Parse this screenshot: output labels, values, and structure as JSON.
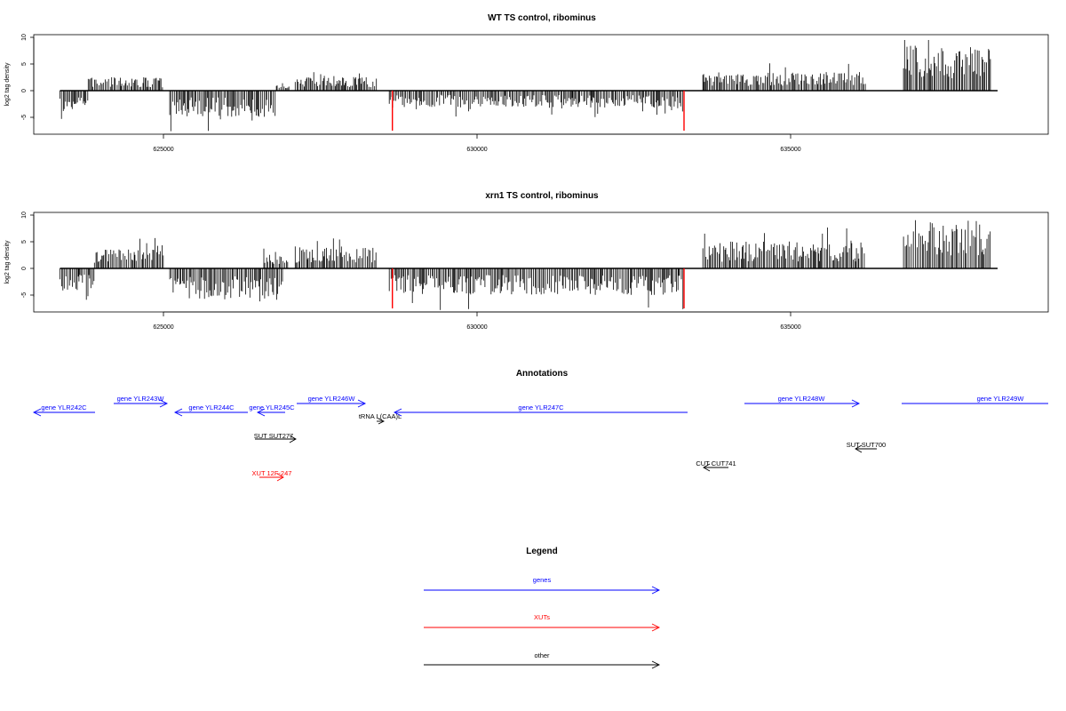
{
  "panels": [
    {
      "title": "WT TS control, ribominus",
      "ylabel": "log2 tag density",
      "yticks": [
        "10",
        "5",
        "0",
        "-5"
      ],
      "xticks": [
        "625000",
        "630000",
        "635000"
      ]
    },
    {
      "title": "xrn1 TS control, ribominus",
      "ylabel": "log2 tag density",
      "yticks": [
        "10",
        "5",
        "0",
        "-5"
      ],
      "xticks": [
        "625000",
        "630000",
        "635000"
      ]
    }
  ],
  "annotations": {
    "title": "Annotations",
    "items": [
      {
        "label": "gene YLR242C",
        "color": "#0000ff"
      },
      {
        "label": "gene YLR243W",
        "color": "#0000ff"
      },
      {
        "label": "gene YLR244C",
        "color": "#0000ff"
      },
      {
        "label": "gene YLR245C",
        "color": "#0000ff"
      },
      {
        "label": "gene YLR246W",
        "color": "#0000ff"
      },
      {
        "label": "tRNA L(CAA)L",
        "color": "#000000"
      },
      {
        "label": "gene YLR247C",
        "color": "#0000ff"
      },
      {
        "label": "gene YLR248W",
        "color": "#0000ff"
      },
      {
        "label": "gene YLR249W",
        "color": "#0000ff"
      },
      {
        "label": "SUT SUT277",
        "color": "#000000"
      },
      {
        "label": "SUT SUT700",
        "color": "#000000"
      },
      {
        "label": "CUT CUT741",
        "color": "#000000"
      },
      {
        "label": "XUT 12F-247",
        "color": "#ff0000"
      }
    ]
  },
  "legend": {
    "title": "Legend",
    "items": [
      {
        "label": "genes",
        "color": "#0000ff"
      },
      {
        "label": "XUTs",
        "color": "#ff0000"
      },
      {
        "label": "other",
        "color": "#000000"
      }
    ]
  },
  "chart_data": [
    {
      "type": "bar",
      "title": "WT TS control, ribominus",
      "ylabel": "log2 tag density",
      "xlim": [
        623000,
        639000
      ],
      "ylim": [
        -8,
        10
      ],
      "segments": [
        {
          "start": 623350,
          "end": 623800,
          "strand": "minus",
          "level": 2.5
        },
        {
          "start": 623800,
          "end": 625000,
          "strand": "plus",
          "level": 1.8
        },
        {
          "start": 625100,
          "end": 626800,
          "strand": "minus",
          "level": 3.5
        },
        {
          "start": 626800,
          "end": 627000,
          "strand": "plus",
          "level": 1.0
        },
        {
          "start": 627100,
          "end": 628400,
          "strand": "plus",
          "level": 1.8
        },
        {
          "start": 628600,
          "end": 633200,
          "strand": "minus",
          "level": 2.3
        },
        {
          "start": 633200,
          "end": 633300,
          "strand": "minus",
          "level": 2.5
        },
        {
          "start": 633600,
          "end": 636200,
          "strand": "plus",
          "level": 2.5
        },
        {
          "start": 636800,
          "end": 638200,
          "strand": "plus",
          "level": 6.0
        }
      ],
      "highlight_lines": [
        {
          "x": 628650,
          "y": -7.5,
          "color": "#ff0000"
        },
        {
          "x": 633300,
          "y": -7.5,
          "color": "#ff0000"
        }
      ]
    },
    {
      "type": "bar",
      "title": "xrn1 TS control, ribominus",
      "ylabel": "log2 tag density",
      "xlim": [
        623000,
        639000
      ],
      "ylim": [
        -8,
        10
      ],
      "segments": [
        {
          "start": 623350,
          "end": 623900,
          "strand": "minus",
          "level": 3.2
        },
        {
          "start": 623900,
          "end": 625000,
          "strand": "plus",
          "level": 2.6
        },
        {
          "start": 625100,
          "end": 626900,
          "strand": "minus",
          "level": 4.2
        },
        {
          "start": 626600,
          "end": 627000,
          "strand": "plus",
          "level": 2.0
        },
        {
          "start": 627100,
          "end": 628400,
          "strand": "plus",
          "level": 3.0
        },
        {
          "start": 628600,
          "end": 633300,
          "strand": "minus",
          "level": 3.6
        },
        {
          "start": 633600,
          "end": 636200,
          "strand": "plus",
          "level": 3.6
        },
        {
          "start": 636800,
          "end": 638200,
          "strand": "plus",
          "level": 6.5
        }
      ],
      "highlight_lines": [
        {
          "x": 628650,
          "y": -7.5,
          "color": "#ff0000"
        },
        {
          "x": 633300,
          "y": -7.5,
          "color": "#ff0000"
        }
      ]
    }
  ]
}
